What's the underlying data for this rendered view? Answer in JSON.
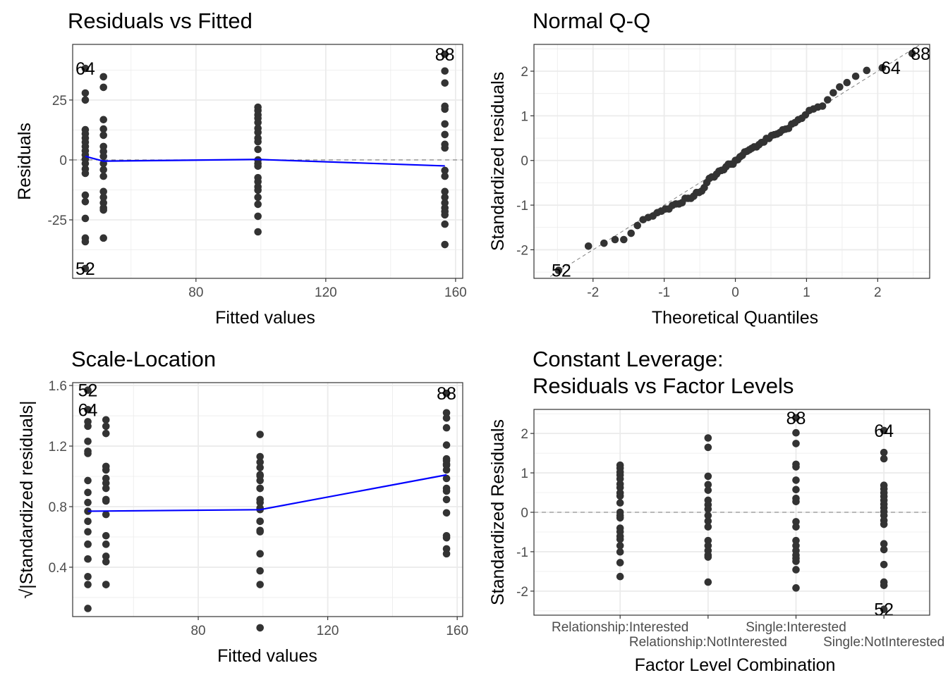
{
  "chart_data": [
    {
      "type": "scatter",
      "title": "Residuals vs Fitted",
      "xlabel": "Fitted values",
      "ylabel": "Residuals",
      "xlim": [
        42,
        162.2
      ],
      "ylim": [
        -49.4,
        48.2
      ],
      "xticks": [
        80,
        120,
        160
      ],
      "xtick_labels": [
        "80",
        "120",
        "160"
      ],
      "yticks": [
        -25,
        0,
        25
      ],
      "ytick_labels": [
        "-25",
        "0",
        "25"
      ],
      "grid": true,
      "reference_line": 0,
      "smoother_color": "#0000ff",
      "groups": [
        {
          "fitted": 45.9,
          "residuals": [
            38.2,
            27.9,
            25,
            12.6,
            10.9,
            9.1,
            7.4,
            5.6,
            3.8,
            2.1,
            0.3,
            -1.5,
            -3.8,
            -5.6,
            -14.7,
            -17.4,
            -24.4,
            -32.6,
            -34.1,
            -45.3
          ]
        },
        {
          "fitted": 51.5,
          "residuals": [
            34.7,
            30.3,
            16.8,
            12.9,
            10.3,
            5.6,
            3.5,
            1.5,
            -1.5,
            -4.1,
            -6.8,
            -13.2,
            -15.6,
            -17.9,
            -20,
            -20.9,
            -32.6
          ]
        },
        {
          "fitted": 99.1,
          "residuals": [
            22,
            20.6,
            18.8,
            17.4,
            15.6,
            13.2,
            11.5,
            9.1,
            7.6,
            4.4,
            0,
            -1.5,
            -2.6,
            -7.4,
            -9.1,
            -11.2,
            -12.6,
            -15.6,
            -18.5,
            -23.5,
            -30
          ]
        },
        {
          "fitted": 156.7,
          "residuals": [
            44.1,
            37.1,
            32.1,
            22.4,
            21.2,
            15,
            10.6,
            6.5,
            5,
            -4.4,
            -6.8,
            -13.2,
            -15.6,
            -17.9,
            -20,
            -21.5,
            -22.9,
            -26.8,
            -35.3
          ]
        }
      ],
      "residual_scale": 18.4,
      "smoother": {
        "x": [
          45.9,
          51.5,
          99.1,
          156.7
        ],
        "y": [
          1.5,
          -0.5,
          0.2,
          -2.5
        ]
      },
      "point_labels": [
        {
          "id": "64",
          "group": 0,
          "residual": 38.2
        },
        {
          "id": "52",
          "group": 0,
          "residual": -45.3
        },
        {
          "id": "88",
          "group": 3,
          "residual": 44.1
        }
      ]
    },
    {
      "type": "scatter",
      "title": "Normal Q-Q",
      "xlabel": "Theoretical Quantiles",
      "ylabel": "Standardized residuals",
      "xlim": [
        -2.83,
        2.73
      ],
      "ylim": [
        -2.64,
        2.6
      ],
      "xticks": [
        -2,
        -1,
        0,
        1,
        2
      ],
      "xtick_labels": [
        "-2",
        "-1",
        "0",
        "1",
        "2"
      ],
      "yticks": [
        -2,
        -1,
        0,
        1,
        2
      ],
      "ytick_labels": [
        "-2",
        "-1",
        "0",
        "1",
        "2"
      ],
      "grid": true,
      "reference_line": "y = x (dashed)",
      "values": "standardized residuals from panel 1 (residual / residual_scale)",
      "point_labels": [
        "64",
        "52",
        "88"
      ]
    },
    {
      "type": "scatter",
      "title": "Scale-Location",
      "xlabel": "Fitted values",
      "ylabel": "√|Standardized residuals|",
      "xlim": [
        41.2,
        161.7
      ],
      "ylim": [
        0.074,
        1.619
      ],
      "xticks": [
        80,
        120,
        160
      ],
      "xtick_labels": [
        "80",
        "120",
        "160"
      ],
      "yticks": [
        0.4,
        0.8,
        1.2,
        1.6
      ],
      "ytick_labels": [
        "0.4",
        "0.8",
        "1.2",
        "1.6"
      ],
      "grid": true,
      "smoother_color": "#0000ff",
      "smoother": {
        "x": [
          45.9,
          99.1,
          156.7
        ],
        "y": [
          0.77,
          0.78,
          1.01
        ]
      },
      "point_labels": [
        "52",
        "64",
        "88"
      ]
    },
    {
      "type": "scatter",
      "title": "Constant Leverage:",
      "title_line2": "Residuals vs Factor Levels",
      "xlabel": "Factor Level Combination",
      "ylabel": "Standardized Residuals",
      "xlim": [
        0.02,
        4.52
      ],
      "ylim": [
        -2.61,
        2.61
      ],
      "levels": [
        "Relationship:Interested",
        "Relationship:NotInterested",
        "Single:Interested",
        "Single:NotInterested"
      ],
      "level_group_index": [
        2,
        1,
        3,
        0
      ],
      "yticks": [
        -2,
        -1,
        0,
        1,
        2
      ],
      "ytick_labels": [
        "-2",
        "-1",
        "0",
        "1",
        "2"
      ],
      "grid": true,
      "reference_line": 0,
      "point_labels": [
        "88",
        "64",
        "52"
      ]
    }
  ]
}
